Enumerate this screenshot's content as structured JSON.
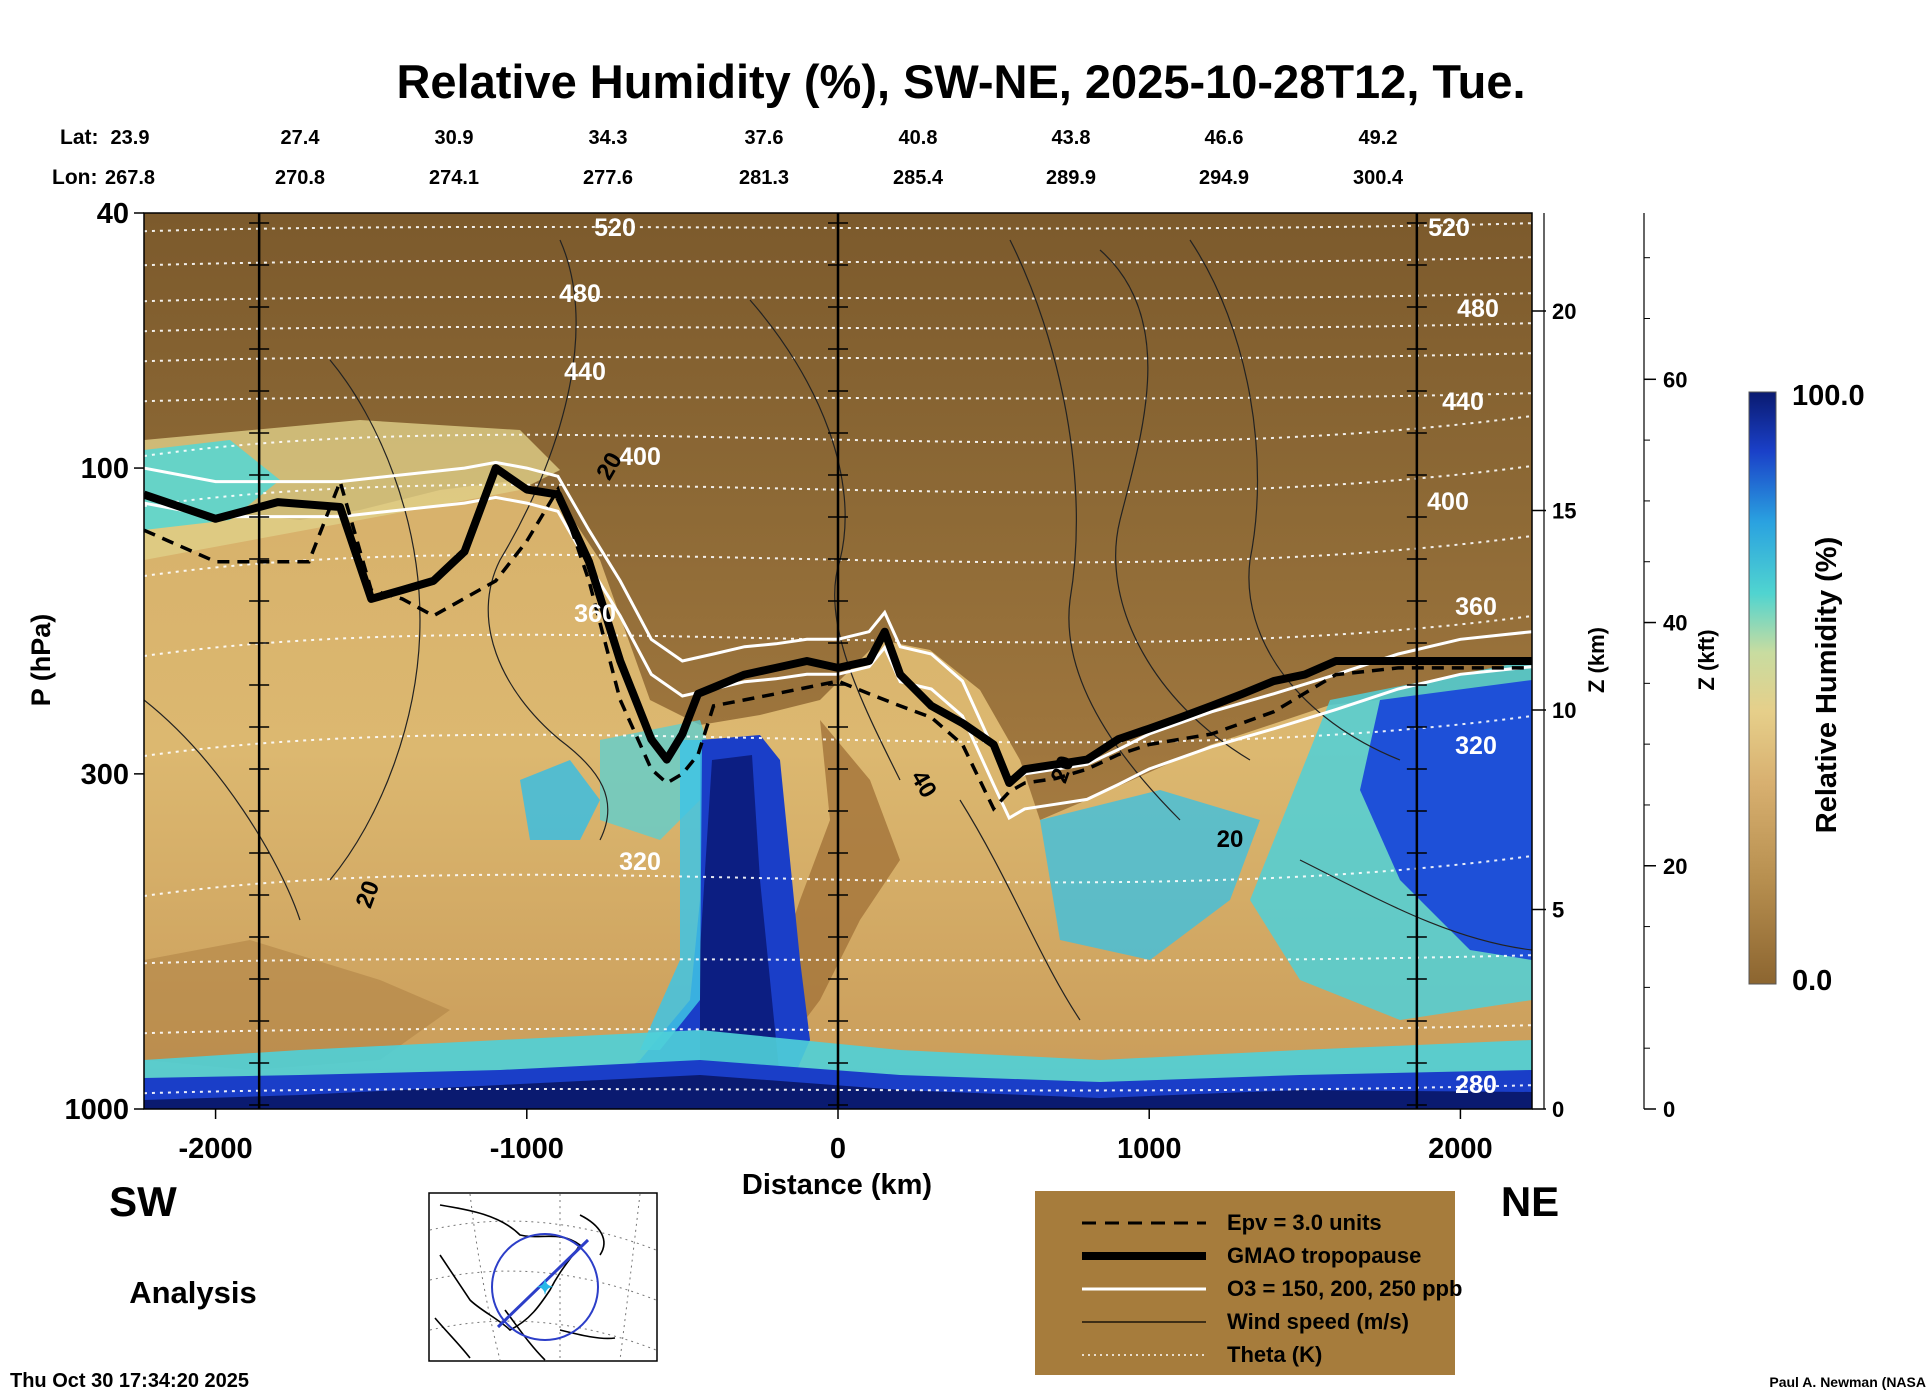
{
  "title": "Relative Humidity (%), SW-NE, 2025-10-28T12, Tue.",
  "lat_label": "Lat:",
  "lon_label": "Lon:",
  "lat_values": [
    "23.9",
    "27.4",
    "30.9",
    "34.3",
    "37.6",
    "40.8",
    "43.8",
    "46.6",
    "49.2"
  ],
  "lon_values": [
    "267.8",
    "270.8",
    "274.1",
    "277.6",
    "281.3",
    "285.4",
    "289.9",
    "294.9",
    "300.4"
  ],
  "left_axis_label": "P (hPa)",
  "z_km_label": "Z (km)",
  "z_kft_label": "Z (kft)",
  "colorbar_label": "Relative Humidity (%)",
  "colorbar_max": "100.0",
  "colorbar_min": "0.0",
  "x_axis_label": "Distance (km)",
  "sw_label": "SW",
  "ne_label": "NE",
  "analysis_label": "Analysis",
  "timestamp": "Thu Oct 30 17:34:20 2025",
  "credit": "Paul A. Newman (NASA",
  "legend": [
    {
      "style": "dashed",
      "label": "Epv = 3.0 units"
    },
    {
      "style": "thick",
      "label": "GMAO tropopause"
    },
    {
      "style": "white",
      "label": "O3 = 150, 200, 250 ppb"
    },
    {
      "style": "thin",
      "label": "Wind speed (m/s)"
    },
    {
      "style": "dotted",
      "label": "Theta (K)"
    }
  ],
  "colors": {
    "dry": "#8c6530",
    "tan": "#c9a060",
    "moist_light": "#d8d89a",
    "cyan": "#3fc8d8",
    "blue": "#1a40c8",
    "navy": "#0a1a70",
    "legend_bg": "#a67c3c"
  },
  "chart_data": {
    "type": "heatmap",
    "title": "Relative Humidity (%), SW-NE, 2025-10-28T12, Tue.",
    "xlabel": "Distance (km)",
    "ylabel": "P (hPa)",
    "xlim": [
      -2230,
      2230
    ],
    "ylim": [
      1000,
      40
    ],
    "y_scale": "log",
    "x_ticks": [
      -2000,
      -1000,
      0,
      1000,
      2000
    ],
    "y_ticks": [
      40,
      100,
      300,
      1000
    ],
    "z_km_ticks": [
      0,
      5,
      10,
      15,
      20
    ],
    "z_kft_ticks": [
      0,
      20,
      40,
      60
    ],
    "colorbar_range": [
      0.0,
      100.0
    ],
    "vertical_lines_km": [
      -1860,
      0,
      1860
    ],
    "tropopause": {
      "name": "GMAO tropopause",
      "x": [
        -2230,
        -2000,
        -1800,
        -1600,
        -1500,
        -1400,
        -1300,
        -1200,
        -1100,
        -1000,
        -900,
        -800,
        -700,
        -600,
        -550,
        -500,
        -450,
        -400,
        -300,
        -200,
        -100,
        0,
        100,
        150,
        200,
        300,
        400,
        500,
        550,
        600,
        700,
        800,
        900,
        1000,
        1100,
        1200,
        1300,
        1400,
        1500,
        1600,
        1800,
        2000,
        2230
      ],
      "p": [
        110,
        120,
        113,
        115,
        160,
        155,
        150,
        135,
        100,
        108,
        110,
        140,
        200,
        265,
        285,
        260,
        225,
        220,
        210,
        205,
        200,
        205,
        200,
        180,
        210,
        235,
        250,
        270,
        310,
        295,
        290,
        285,
        265,
        255,
        245,
        235,
        225,
        215,
        210,
        200,
        200,
        200,
        200
      ]
    },
    "epv": {
      "name": "Epv = 3.0 units",
      "x": [
        -2230,
        -2000,
        -1700,
        -1600,
        -1500,
        -1400,
        -1300,
        -1100,
        -1000,
        -900,
        -800,
        -700,
        -600,
        -550,
        -500,
        -450,
        -400,
        -300,
        -200,
        -100,
        0,
        100,
        200,
        300,
        400,
        500,
        550,
        600,
        700,
        800,
        900,
        1000,
        1200,
        1400,
        1600,
        1800,
        2000,
        2230
      ],
      "p": [
        125,
        140,
        140,
        105,
        155,
        160,
        170,
        150,
        130,
        108,
        150,
        230,
        295,
        310,
        300,
        280,
        235,
        230,
        225,
        220,
        215,
        225,
        235,
        245,
        270,
        340,
        320,
        310,
        305,
        295,
        280,
        270,
        260,
        240,
        210,
        205,
        205,
        205
      ]
    },
    "ozone_contours": {
      "name": "O3 = 150, 200, 250 ppb",
      "x": [
        -2230,
        -2000,
        -1600,
        -1200,
        -1100,
        -1000,
        -900,
        -800,
        -700,
        -600,
        -500,
        -400,
        -300,
        -200,
        -100,
        0,
        100,
        150,
        200,
        300,
        400,
        500,
        550,
        600,
        700,
        800,
        900,
        1000,
        1200,
        1400,
        1600,
        1800,
        2000,
        2230
      ],
      "p": [
        100,
        105,
        105,
        100,
        98,
        100,
        103,
        125,
        150,
        185,
        200,
        195,
        190,
        188,
        185,
        185,
        180,
        168,
        190,
        195,
        215,
        275,
        310,
        300,
        295,
        290,
        275,
        260,
        240,
        225,
        210,
        195,
        185,
        180
      ]
    },
    "theta_labels_K": [
      520,
      480,
      440,
      400,
      360,
      320,
      280
    ],
    "wind_speed_labels_ms": [
      20,
      40
    ]
  }
}
